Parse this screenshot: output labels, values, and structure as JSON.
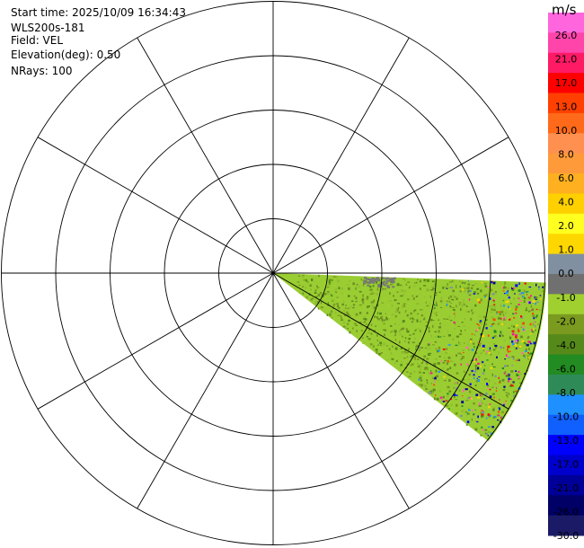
{
  "info": {
    "start_time": "Start time: 2025/10/09 16:34:43",
    "site": "WLS200s-181",
    "field": "Field: VEL",
    "elevation": "Elevation(deg): 0.50",
    "nrays": "NRays: 100"
  },
  "chart_data": {
    "type": "heatmap",
    "subtype": "radar-ppi",
    "title": "",
    "xlabel": "",
    "ylabel": "",
    "grid": true,
    "range_rings": 5,
    "radial_spokes_deg": [
      0,
      30,
      60,
      90,
      120,
      150,
      180,
      210,
      240,
      270,
      300,
      330
    ],
    "sector": {
      "azimuth_start_deg": 92,
      "azimuth_end_deg": 128,
      "dominant_values": [
        -1.0,
        -2.0,
        -4.0
      ],
      "noise_far_range": true
    },
    "colorbar": {
      "unit": "m/s",
      "ticks": [
        "26.0",
        "21.0",
        "17.0",
        "13.0",
        "10.0",
        "8.0",
        "6.0",
        "4.0",
        "2.0",
        "1.0",
        "0.0",
        "-1.0",
        "-2.0",
        "-4.0",
        "-6.0",
        "-8.0",
        "-10.0",
        "-13.0",
        "-17.0",
        "-21.0",
        "-26.0",
        "-30.0"
      ],
      "colors": [
        "#ff66dd",
        "#ff44aa",
        "#ff1a66",
        "#ff0000",
        "#ff4000",
        "#ff6a1a",
        "#ff9050",
        "#ff9a3a",
        "#ffb020",
        "#ffd000",
        "#ffff20",
        "#ffd700",
        "#8090a0",
        "#707070",
        "#a0d030",
        "#7a9a20",
        "#558a1a",
        "#228b22",
        "#2e8b57",
        "#1e90ff",
        "#1060ff",
        "#0000ff",
        "#0000cc",
        "#000099",
        "#000066",
        "#1a1a66"
      ]
    }
  }
}
